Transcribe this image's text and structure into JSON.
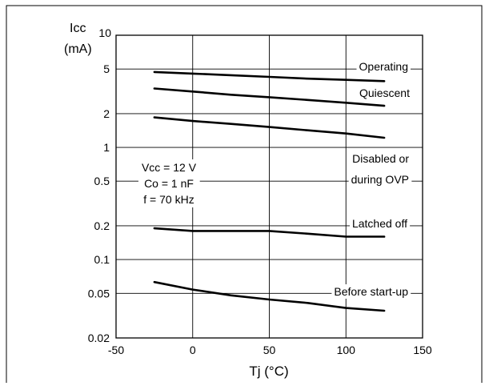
{
  "chart_data": {
    "type": "line",
    "title": "",
    "ylabel_line1": "Icc",
    "ylabel_line2": "(mA)",
    "xlabel": "Tj  (°C)",
    "xlim": [
      -50,
      150
    ],
    "ylim": [
      0.02,
      10
    ],
    "yscale": "log",
    "grid": true,
    "x_ticks": [
      -50,
      0,
      50,
      100,
      150
    ],
    "x_tick_labels": [
      "-50",
      "0",
      "50",
      "100",
      "150"
    ],
    "y_ticks": [
      0.02,
      0.05,
      0.1,
      0.2,
      0.5,
      1,
      2,
      5,
      10
    ],
    "y_tick_labels": [
      "0.02",
      "0.05",
      "0.1",
      "0.2",
      "0.5",
      "1",
      "2",
      "5",
      "10"
    ],
    "conditions": [
      "Vcc = 12 V",
      "Co = 1 nF",
      "f = 70 kHz"
    ],
    "series": [
      {
        "name": "Operating",
        "label_lines": [
          "Operating"
        ],
        "x": [
          -25,
          0,
          25,
          50,
          75,
          100,
          125
        ],
        "y": [
          4.7,
          4.55,
          4.4,
          4.25,
          4.1,
          4.0,
          3.9
        ]
      },
      {
        "name": "Quiescent",
        "label_lines": [
          "Quiescent"
        ],
        "x": [
          -25,
          0,
          25,
          50,
          75,
          100,
          125
        ],
        "y": [
          3.35,
          3.15,
          2.95,
          2.8,
          2.65,
          2.5,
          2.35
        ]
      },
      {
        "name": "Disabled or during OVP",
        "label_lines": [
          "Disabled or",
          "during OVP"
        ],
        "x": [
          -25,
          0,
          25,
          50,
          75,
          100,
          125
        ],
        "y": [
          1.85,
          1.72,
          1.62,
          1.52,
          1.42,
          1.33,
          1.22
        ]
      },
      {
        "name": "Latched off",
        "label_lines": [
          "Latched off"
        ],
        "x": [
          -25,
          0,
          25,
          50,
          75,
          100,
          125
        ],
        "y": [
          0.19,
          0.18,
          0.18,
          0.18,
          0.17,
          0.16,
          0.16
        ]
      },
      {
        "name": "Before start-up",
        "label_lines": [
          "Before start-up"
        ],
        "x": [
          -25,
          0,
          25,
          50,
          75,
          100,
          125
        ],
        "y": [
          0.063,
          0.054,
          0.048,
          0.044,
          0.041,
          0.037,
          0.035
        ]
      }
    ]
  }
}
